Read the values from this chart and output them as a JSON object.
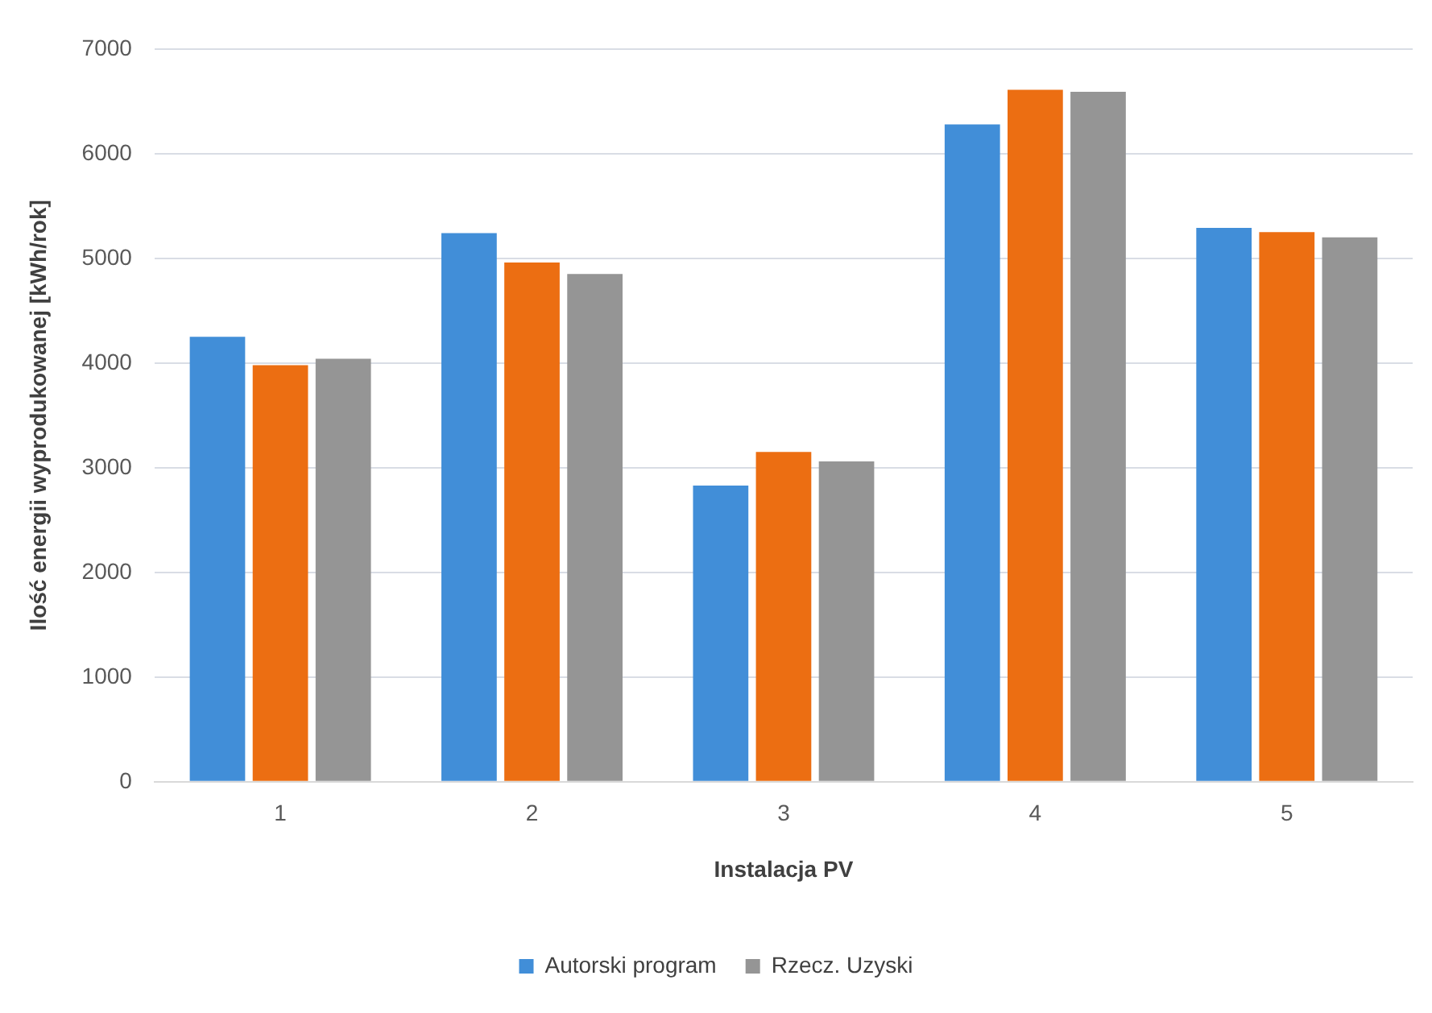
{
  "chart_data": {
    "type": "bar",
    "xlabel": "Instalacja PV",
    "ylabel": "Ilość energii wyprodukowanej [kWh/rok]",
    "categories": [
      "1",
      "2",
      "3",
      "4",
      "5"
    ],
    "series": [
      {
        "name": "Autorski program",
        "color": "#418ed8",
        "values": [
          4250,
          5240,
          2830,
          6280,
          5290
        ]
      },
      {
        "color": "#ec6e12",
        "values": [
          3980,
          4960,
          3150,
          6610,
          5250
        ]
      },
      {
        "name": "Rzecz. Uzyski",
        "color": "#959595",
        "values": [
          4040,
          4850,
          3060,
          6590,
          5200
        ]
      }
    ],
    "ylim": [
      0,
      7000
    ],
    "yticks": [
      0,
      1000,
      2000,
      3000,
      4000,
      5000,
      6000,
      7000
    ],
    "grid": "y",
    "legend": "bottom"
  }
}
